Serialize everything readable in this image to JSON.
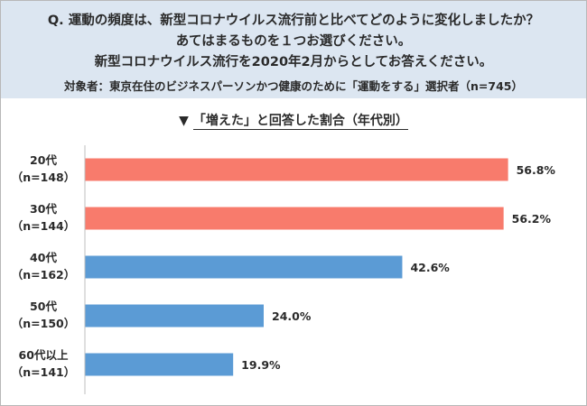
{
  "question": {
    "lines": [
      "Q. 運動の頻度は、新型コロナウイルス流行前と比べてどのように変化しましたか？",
      "あてはまるものを１つお選びください。",
      "新型コロナウイルス流行を2020年2月からとしてお答えください。"
    ],
    "target": "対象者：東京在住のビジネスパーソンかつ健康のために「運動をする」選択者（n=745）"
  },
  "chart_data": {
    "type": "bar",
    "orientation": "horizontal",
    "title_marker": "▼",
    "title": "「増えた」と回答した割合（年代別）",
    "categories": [
      "20代",
      "30代",
      "40代",
      "50代",
      "60代以上"
    ],
    "sample_sizes": [
      "（n=148）",
      "（n=144）",
      "（n=162）",
      "（n=150）",
      "（n=141）"
    ],
    "values": [
      56.8,
      56.2,
      42.6,
      24.0,
      19.9
    ],
    "value_labels": [
      "56.8%",
      "56.2%",
      "42.6%",
      "24.0%",
      "19.9%"
    ],
    "xlim": [
      0,
      60
    ],
    "grid": false,
    "colors": [
      "#f87b6c",
      "#f87b6c",
      "#5b9bd5",
      "#5b9bd5",
      "#5b9bd5"
    ],
    "axis_color": "#bfbfbf",
    "label_color": "#2a2a2a"
  }
}
